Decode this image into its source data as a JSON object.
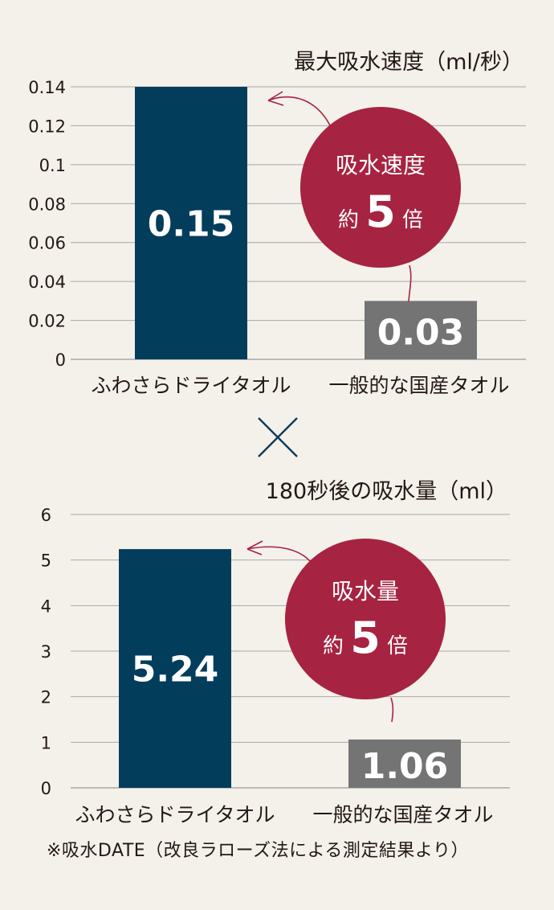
{
  "chart_data": [
    {
      "type": "bar",
      "title": "最大吸水速度（ml/秒）",
      "categories": [
        "ふわさらドライタオル",
        "一般的な国産タオル"
      ],
      "values": [
        0.15,
        0.03
      ],
      "value_labels": [
        "0.15",
        "0.03"
      ],
      "bar_colors": [
        "#033d5c",
        "#747474"
      ],
      "ylim": [
        0,
        0.14
      ],
      "ytick_labels": [
        "0",
        "0.02",
        "0.04",
        "0.06",
        "0.08",
        "0.1",
        "0.12",
        "0.14"
      ],
      "yticks": [
        0,
        0.02,
        0.04,
        0.06,
        0.08,
        0.1,
        0.12,
        0.14
      ],
      "grid": true,
      "badge": {
        "line1": "吸水速度",
        "prefix": "約",
        "number": "5",
        "suffix": "倍",
        "color": "#a62341"
      }
    },
    {
      "type": "bar",
      "title": "180秒後の吸水量（ml）",
      "categories": [
        "ふわさらドライタオル",
        "一般的な国産タオル"
      ],
      "values": [
        5.24,
        1.06
      ],
      "value_labels": [
        "5.24",
        "1.06"
      ],
      "bar_colors": [
        "#033d5c",
        "#747474"
      ],
      "ylim": [
        0,
        6
      ],
      "ytick_labels": [
        "0",
        "1",
        "2",
        "3",
        "4",
        "5",
        "6"
      ],
      "yticks": [
        0,
        1,
        2,
        3,
        4,
        5,
        6
      ],
      "grid": true,
      "badge": {
        "line1": "吸水量",
        "prefix": "約",
        "number": "5",
        "suffix": "倍",
        "color": "#a62341"
      }
    }
  ],
  "separator_symbol": "×",
  "footnote": "※吸水DATE（改良ラローズ法による測定結果より）",
  "colors": {
    "background": "#f4f1ea",
    "grid": "#a8a8a8",
    "text": "#231815",
    "value_text": "#ffffff",
    "arrow": "#a62341"
  }
}
